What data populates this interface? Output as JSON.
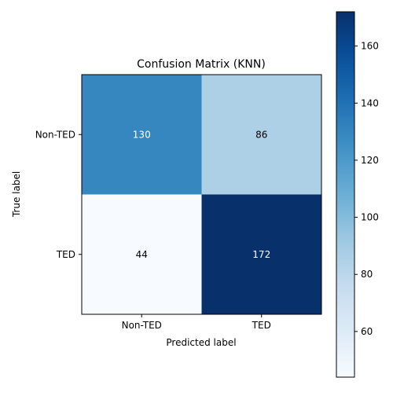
{
  "chart_data": {
    "type": "heatmap",
    "title": "Confusion Matrix (KNN)",
    "xlabel": "Predicted label",
    "ylabel": "True label",
    "x_categories": [
      "Non-TED",
      "TED"
    ],
    "y_categories": [
      "Non-TED",
      "TED"
    ],
    "values": [
      [
        130,
        86
      ],
      [
        44,
        172
      ]
    ],
    "colormap": "Blues",
    "colorbar": {
      "range": [
        44,
        172
      ],
      "ticks": [
        60,
        80,
        100,
        120,
        140,
        160
      ]
    },
    "colors": {
      "low": "#f7fbff",
      "high": "#08306b",
      "text_light": "#ffffff",
      "text_dark": "#000000"
    }
  }
}
